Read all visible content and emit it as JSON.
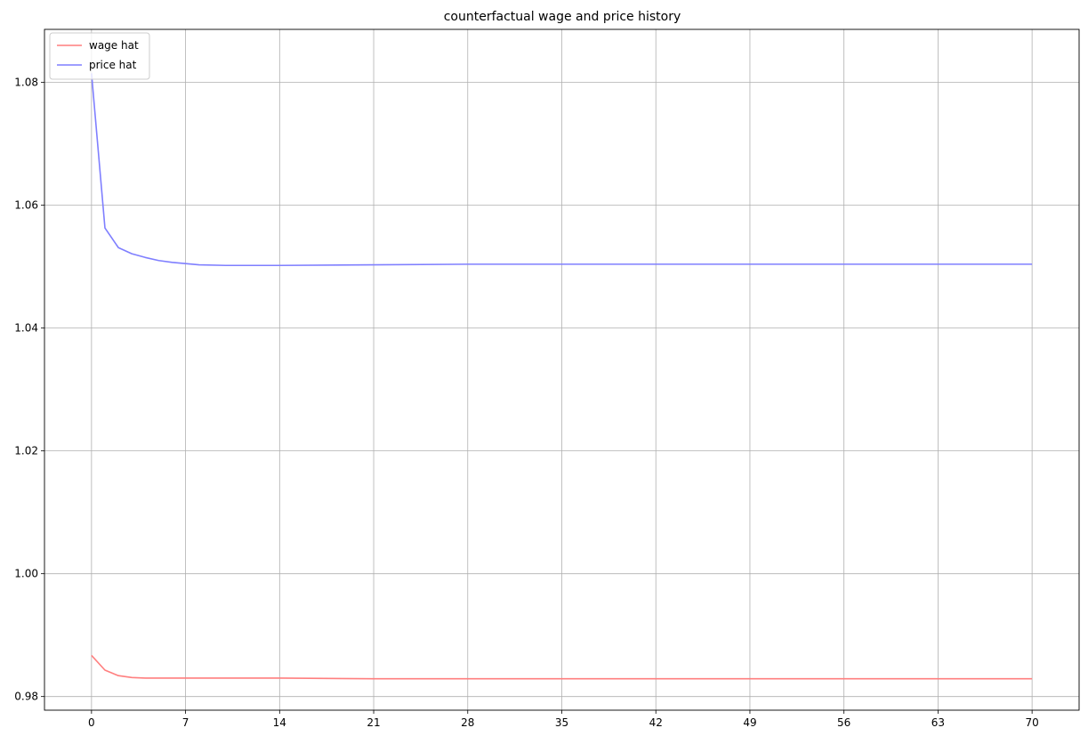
{
  "chart_data": {
    "type": "line",
    "title": "counterfactual wage and price history",
    "xlabel": "",
    "ylabel": "",
    "xlim": [
      -3.5,
      73.5
    ],
    "ylim": [
      0.97778,
      1.08864
    ],
    "xticks": [
      0,
      7,
      14,
      21,
      28,
      35,
      42,
      49,
      56,
      63,
      70
    ],
    "xtick_labels": [
      "0",
      "7",
      "14",
      "21",
      "28",
      "35",
      "42",
      "49",
      "56",
      "63",
      "70"
    ],
    "yticks": [
      0.98,
      1.0,
      1.02,
      1.04,
      1.06,
      1.08
    ],
    "ytick_labels": [
      "0.98",
      "1.00",
      "1.02",
      "1.04",
      "1.06",
      "1.08"
    ],
    "grid": true,
    "legend_position": "top-left",
    "series": [
      {
        "name": "wage hat",
        "color": "#ff7f7f",
        "x": [
          0,
          1,
          2,
          3,
          4,
          5,
          6,
          7,
          10,
          14,
          21,
          28,
          35,
          42,
          49,
          56,
          63,
          70
        ],
        "y": [
          0.9867,
          0.9843,
          0.9834,
          0.9831,
          0.983,
          0.983,
          0.983,
          0.983,
          0.983,
          0.983,
          0.9829,
          0.9829,
          0.9829,
          0.9829,
          0.9829,
          0.9829,
          0.9829,
          0.9829
        ]
      },
      {
        "name": "price hat",
        "color": "#7f7fff",
        "x": [
          0,
          1,
          2,
          3,
          4,
          5,
          6,
          7,
          8,
          10,
          14,
          21,
          28,
          35,
          42,
          49,
          56,
          63,
          70
        ],
        "y": [
          1.0815,
          1.0563,
          1.0531,
          1.0521,
          1.0515,
          1.051,
          1.0507,
          1.0505,
          1.0503,
          1.0502,
          1.0502,
          1.0503,
          1.0504,
          1.0504,
          1.0504,
          1.0504,
          1.0504,
          1.0504,
          1.0504
        ]
      }
    ]
  }
}
